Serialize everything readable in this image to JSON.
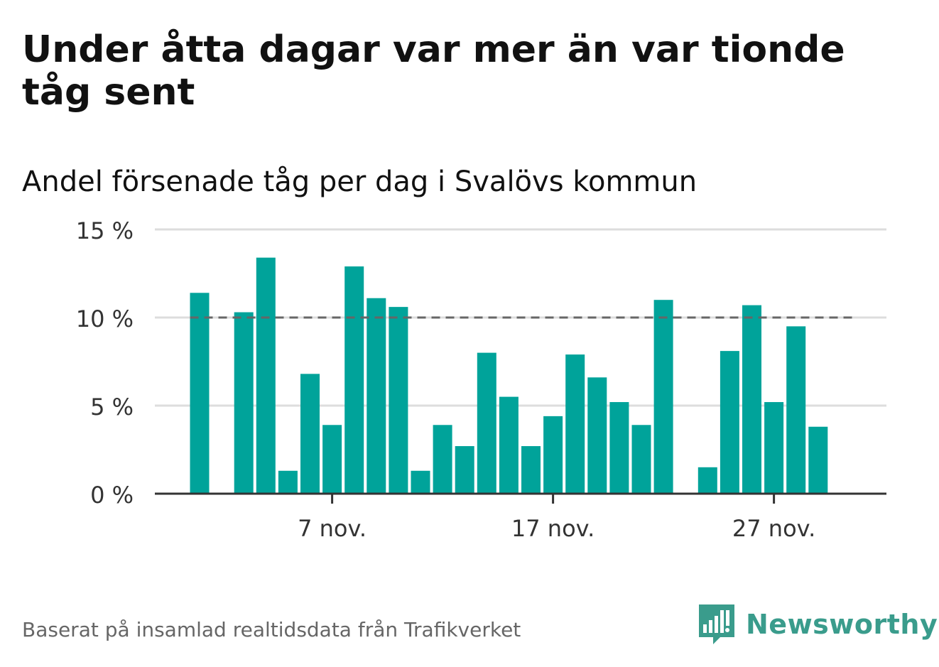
{
  "header": {
    "title": "Under åtta dagar var mer än var tionde tåg sent",
    "subtitle": "Andel försenade tåg per dag i Svalövs kommun"
  },
  "footer": {
    "source": "Baserat på insamlad realtidsdata från Trafikverket",
    "brand": "Newsworthy"
  },
  "colors": {
    "bar": "#00a39a",
    "reference_line": "#666666",
    "grid": "#dddddd",
    "axis": "#333333",
    "brand": "#3a9c8c"
  },
  "icons": {
    "logo": "bar-chart-speech-bubble-icon"
  },
  "chart_data": {
    "type": "bar",
    "title": "Under åtta dagar var mer än var tionde tåg sent",
    "subtitle": "Andel försenade tåg per dag i Svalövs kommun",
    "x": [
      "2020-11-01",
      "2020-11-02",
      "2020-11-03",
      "2020-11-04",
      "2020-11-05",
      "2020-11-06",
      "2020-11-07",
      "2020-11-08",
      "2020-11-09",
      "2020-11-10",
      "2020-11-11",
      "2020-11-12",
      "2020-11-13",
      "2020-11-14",
      "2020-11-15",
      "2020-11-16",
      "2020-11-17",
      "2020-11-18",
      "2020-11-19",
      "2020-11-20",
      "2020-11-21",
      "2020-11-22",
      "2020-11-23",
      "2020-11-24",
      "2020-11-25",
      "2020-11-26",
      "2020-11-27",
      "2020-11-28",
      "2020-11-29",
      "2020-11-30"
    ],
    "values": [
      11.4,
      0,
      10.3,
      13.4,
      1.3,
      6.8,
      3.9,
      12.9,
      11.1,
      10.6,
      1.3,
      3.9,
      2.7,
      8.0,
      5.5,
      2.7,
      4.4,
      7.9,
      6.6,
      5.2,
      3.9,
      11.0,
      0,
      1.5,
      8.1,
      10.7,
      5.2,
      9.5,
      3.8,
      0
    ],
    "x_ticks": [
      {
        "x": "2020-11-07",
        "label": "7 nov."
      },
      {
        "x": "2020-11-17",
        "label": "17 nov."
      },
      {
        "x": "2020-11-27",
        "label": "27 nov."
      }
    ],
    "y_ticks": [
      {
        "value": 0,
        "label": "0 %"
      },
      {
        "value": 5,
        "label": "5 %"
      },
      {
        "value": 10,
        "label": "10 %"
      },
      {
        "value": 15,
        "label": "15 %"
      }
    ],
    "ylim": [
      0,
      15
    ],
    "xlabel": "",
    "ylabel": "",
    "reference_line": {
      "value": 10,
      "style": "dashed"
    },
    "grid": true
  }
}
